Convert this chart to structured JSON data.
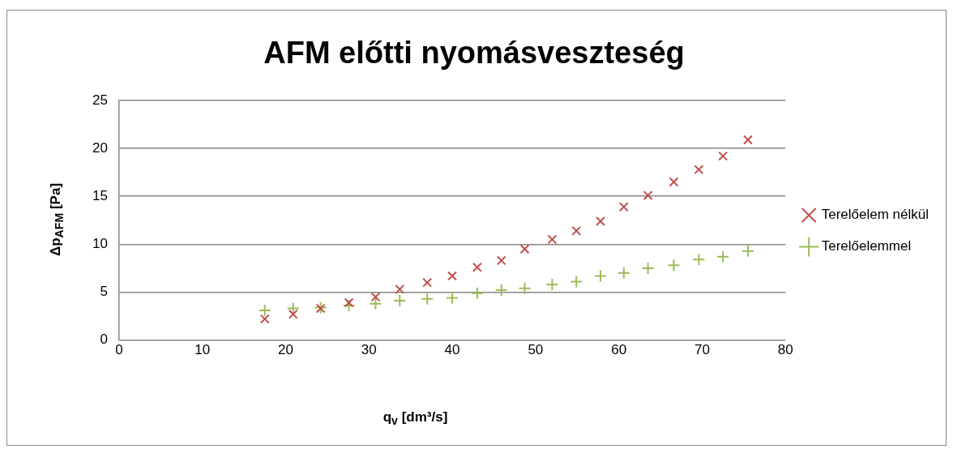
{
  "chart_data": {
    "type": "scatter",
    "title": "AFM előtti nyomásveszteség",
    "xlabel": "q$_{v}$ [dm³/s]",
    "ylabel": "Δp$_{AFM}$ [Pa]",
    "x": [
      17.5,
      20.9,
      24.2,
      27.6,
      30.8,
      33.7,
      37.0,
      40.0,
      43.0,
      45.9,
      48.7,
      52.0,
      54.9,
      57.8,
      60.6,
      63.5,
      66.6,
      69.6,
      72.5,
      75.5
    ],
    "series": [
      {
        "name": "Terelőelem nélkül",
        "color": "#c0504d",
        "marker": "cross",
        "values": [
          2.2,
          2.7,
          3.3,
          3.9,
          4.5,
          5.3,
          6.0,
          6.7,
          7.6,
          8.3,
          9.5,
          10.5,
          11.4,
          12.4,
          13.9,
          15.1,
          16.5,
          17.8,
          19.2,
          20.9
        ]
      },
      {
        "name": "Terelőelemmel",
        "color": "#9bbb59",
        "marker": "plus",
        "values": [
          3.1,
          3.3,
          3.4,
          3.6,
          3.8,
          4.1,
          4.3,
          4.4,
          4.9,
          5.2,
          5.4,
          5.8,
          6.1,
          6.7,
          7.0,
          7.5,
          7.8,
          8.4,
          8.7,
          9.3
        ]
      }
    ],
    "xlim": [
      0,
      80
    ],
    "xticks": [
      0,
      10,
      20,
      30,
      40,
      50,
      60,
      70,
      80
    ],
    "ylim": [
      0,
      25
    ],
    "yticks": [
      0,
      5,
      10,
      15,
      20,
      25
    ],
    "grid": "y",
    "legend": "right"
  }
}
